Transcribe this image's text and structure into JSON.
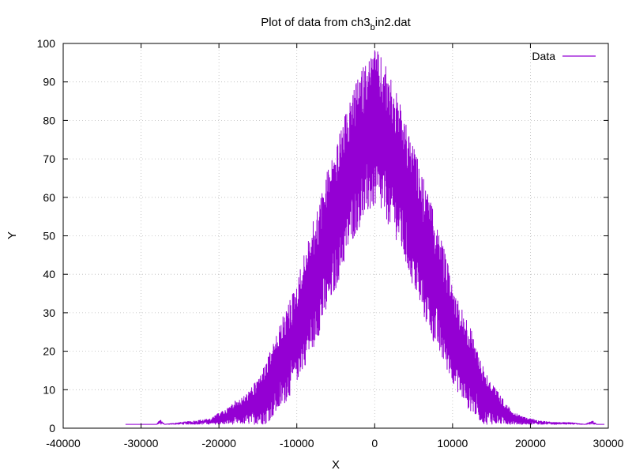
{
  "chart_data": {
    "type": "line",
    "title": "Plot of data from ch3",
    "title_subscript": "b",
    "title_suffix": "in2.dat",
    "xlabel": "X",
    "ylabel": "Y",
    "xlim": [
      -40000,
      30000
    ],
    "ylim": [
      0,
      100
    ],
    "xticks": [
      -40000,
      -30000,
      -20000,
      -10000,
      0,
      10000,
      20000,
      30000
    ],
    "yticks": [
      0,
      10,
      20,
      30,
      40,
      50,
      60,
      70,
      80,
      90,
      100
    ],
    "grid": true,
    "legend_position": "top-right",
    "series": [
      {
        "name": "Data",
        "color": "#9400d3",
        "x": [
          -32000,
          -28000,
          -27500,
          -27000,
          -25000,
          -23000,
          -21000,
          -20000,
          -19000,
          -18000,
          -17000,
          -16000,
          -15000,
          -14000,
          -13000,
          -12000,
          -11000,
          -10000,
          -9000,
          -8000,
          -7000,
          -6000,
          -5000,
          -4000,
          -3000,
          -2000,
          -1000,
          0,
          1000,
          2000,
          3000,
          4000,
          5000,
          6000,
          7000,
          8000,
          9000,
          10000,
          11000,
          12000,
          13000,
          14000,
          15000,
          16000,
          17000,
          18000,
          19000,
          20000,
          21000,
          23000,
          25000,
          27000,
          28000,
          28500,
          29500
        ],
        "y_low": [
          1,
          1,
          1,
          1,
          1,
          1,
          1,
          1,
          1,
          1,
          1,
          1,
          1,
          1,
          3,
          5,
          8,
          12,
          16,
          20,
          25,
          30,
          36,
          42,
          48,
          52,
          55,
          57,
          55,
          52,
          48,
          42,
          36,
          30,
          25,
          20,
          16,
          12,
          8,
          5,
          3,
          1,
          1,
          1,
          1,
          1,
          1,
          1,
          1,
          1,
          1,
          1,
          1,
          1,
          1
        ],
        "y_high": [
          1,
          1,
          2.5,
          1,
          1.5,
          2,
          2.5,
          4,
          5,
          7,
          8,
          10,
          13,
          17,
          22,
          28,
          33,
          38,
          46,
          53,
          60,
          68,
          73,
          80,
          86,
          92,
          96,
          99,
          96,
          92,
          86,
          79,
          73,
          67,
          60,
          53,
          46,
          38,
          32,
          28,
          22,
          16,
          12,
          9,
          6,
          4,
          3,
          2.5,
          2,
          1.5,
          1.5,
          1,
          2,
          1,
          1
        ]
      }
    ]
  }
}
